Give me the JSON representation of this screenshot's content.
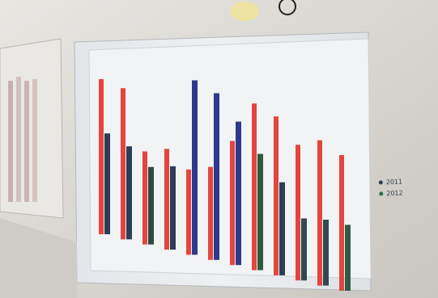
{
  "photo": {
    "description_colors": {
      "wall": "#dcdad6",
      "board": "#eceef0",
      "red_bar": "#e4453e",
      "dark_bar": "#2e3d55",
      "blue_bar": "#2b3a8c",
      "green_edge": "#3e8a4b"
    }
  },
  "chart_data": {
    "type": "bar",
    "legend_labels": [
      "2011",
      "2012"
    ],
    "bar_groups": [
      {
        "a": 0.8,
        "b": 0.52,
        "dark_color": "#2e3d55"
      },
      {
        "a": 0.78,
        "b": 0.48,
        "dark_color": "#2e3d55"
      },
      {
        "a": 0.48,
        "b": 0.4,
        "dark_color": "#2f4a40"
      },
      {
        "a": 0.52,
        "b": 0.43,
        "dark_color": "#2e3d55"
      },
      {
        "a": 0.44,
        "b": 0.9,
        "dark_color": "#2b3a8c"
      },
      {
        "a": 0.48,
        "b": 0.86,
        "dark_color": "#2b3a8c"
      },
      {
        "a": 0.64,
        "b": 0.74,
        "dark_color": "#2b3a8c"
      },
      {
        "a": 0.86,
        "b": 0.6,
        "dark_color": "#2f5a3e"
      },
      {
        "a": 0.82,
        "b": 0.48,
        "dark_color": "#2e3d55"
      },
      {
        "a": 0.7,
        "b": 0.32,
        "dark_color": "#2e4a55"
      },
      {
        "a": 0.75,
        "b": 0.34,
        "dark_color": "#2e4a55"
      },
      {
        "a": 0.7,
        "b": 0.34,
        "dark_color": "#2f5a4a"
      }
    ]
  }
}
